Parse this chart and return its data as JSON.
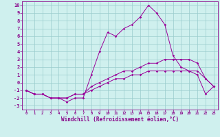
{
  "xlabel": "Windchill (Refroidissement éolien,°C)",
  "line_color": "#990099",
  "bg_color": "#cff0ee",
  "grid_color": "#99cccc",
  "xlim": [
    -0.5,
    23.5
  ],
  "ylim": [
    -3.5,
    10.5
  ],
  "xticks": [
    0,
    1,
    2,
    3,
    4,
    5,
    6,
    7,
    8,
    9,
    10,
    11,
    12,
    13,
    14,
    15,
    16,
    17,
    18,
    19,
    20,
    21,
    22,
    23
  ],
  "yticks": [
    -3,
    -2,
    -1,
    0,
    1,
    2,
    3,
    4,
    5,
    6,
    7,
    8,
    9,
    10
  ],
  "line1_x": [
    0,
    1,
    2,
    3,
    4,
    5,
    6,
    7,
    8,
    9,
    10,
    11,
    12,
    13,
    14,
    15,
    16,
    17,
    18,
    19,
    20,
    21,
    22,
    23
  ],
  "line1_y": [
    -1,
    -1.5,
    -1.5,
    -2,
    -2,
    -2.5,
    -2,
    -2,
    1,
    4,
    6.5,
    6,
    7,
    7.5,
    8.5,
    10,
    9,
    7.5,
    3.5,
    2,
    1.5,
    1,
    -1.5,
    -0.5
  ],
  "line2_x": [
    0,
    1,
    2,
    3,
    4,
    5,
    6,
    7,
    8,
    9,
    10,
    11,
    12,
    13,
    14,
    15,
    16,
    17,
    18,
    19,
    20,
    21,
    22,
    23
  ],
  "line2_y": [
    -1,
    -1.5,
    -1.5,
    -2,
    -2,
    -2,
    -1.5,
    -1.5,
    -0.5,
    0,
    0.5,
    1,
    1.5,
    1.5,
    2,
    2.5,
    2.5,
    3,
    3,
    3,
    3,
    2.5,
    0.5,
    -0.5
  ],
  "line3_x": [
    0,
    1,
    2,
    3,
    4,
    5,
    6,
    7,
    8,
    9,
    10,
    11,
    12,
    13,
    14,
    15,
    16,
    17,
    18,
    19,
    20,
    21,
    22,
    23
  ],
  "line3_y": [
    -1,
    -1.5,
    -1.5,
    -2,
    -2,
    -2,
    -1.5,
    -1.5,
    -1,
    -0.5,
    0,
    0.5,
    0.5,
    1,
    1,
    1.5,
    1.5,
    1.5,
    1.5,
    1.5,
    1.5,
    1.5,
    0.5,
    -0.5
  ]
}
